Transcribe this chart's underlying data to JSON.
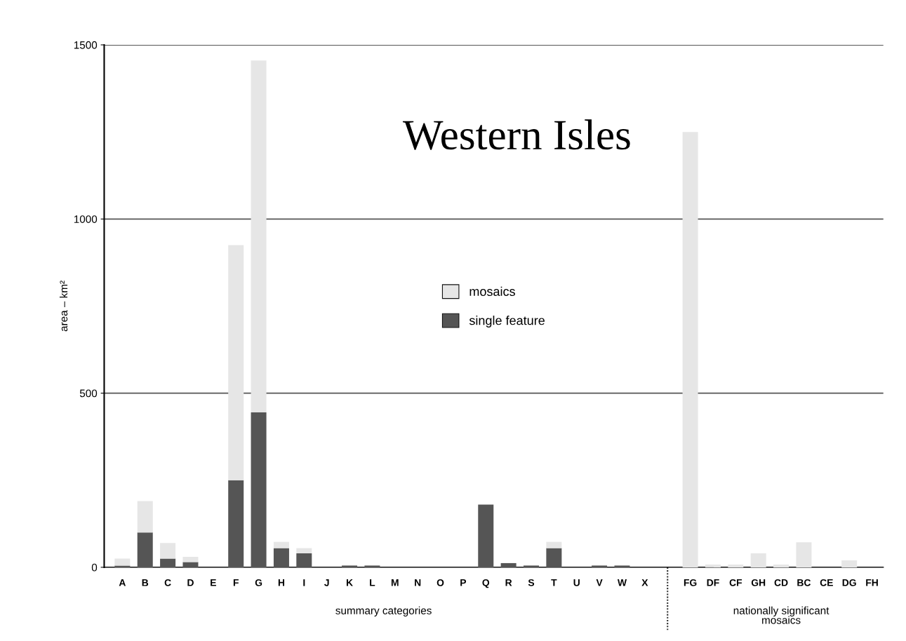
{
  "chart_data": {
    "type": "bar",
    "title": "Western Isles",
    "ylabel": "area – km²",
    "categories": [
      "A",
      "B",
      "C",
      "D",
      "E",
      "F",
      "G",
      "H",
      "I",
      "J",
      "K",
      "L",
      "M",
      "N",
      "O",
      "P",
      "Q",
      "R",
      "S",
      "T",
      "U",
      "V",
      "W",
      "X",
      null,
      "FG",
      "DF",
      "CF",
      "GH",
      "CD",
      "BC",
      "CE",
      "DG",
      "FH"
    ],
    "series": [
      {
        "name": "single feature",
        "color": "#555555",
        "values": [
          5,
          100,
          25,
          15,
          0,
          250,
          445,
          55,
          40,
          0,
          5,
          5,
          0,
          0,
          0,
          0,
          180,
          12,
          5,
          55,
          0,
          5,
          5,
          0,
          null,
          0,
          0,
          0,
          0,
          0,
          0,
          0,
          0,
          0
        ]
      },
      {
        "name": "mosaics",
        "color": "#e6e6e6",
        "values": [
          20,
          90,
          45,
          15,
          0,
          675,
          1010,
          18,
          15,
          0,
          0,
          0,
          0,
          0,
          0,
          0,
          0,
          0,
          0,
          18,
          0,
          0,
          0,
          0,
          null,
          1250,
          8,
          8,
          40,
          8,
          72,
          0,
          20,
          0
        ]
      }
    ],
    "stacked": true,
    "ylim": [
      0,
      1500
    ],
    "yticks": [
      0,
      500,
      1000,
      1500
    ],
    "grid": "y",
    "legend": "center",
    "annotations": [
      "summary categories",
      "nationally significant\nmosaics"
    ]
  }
}
